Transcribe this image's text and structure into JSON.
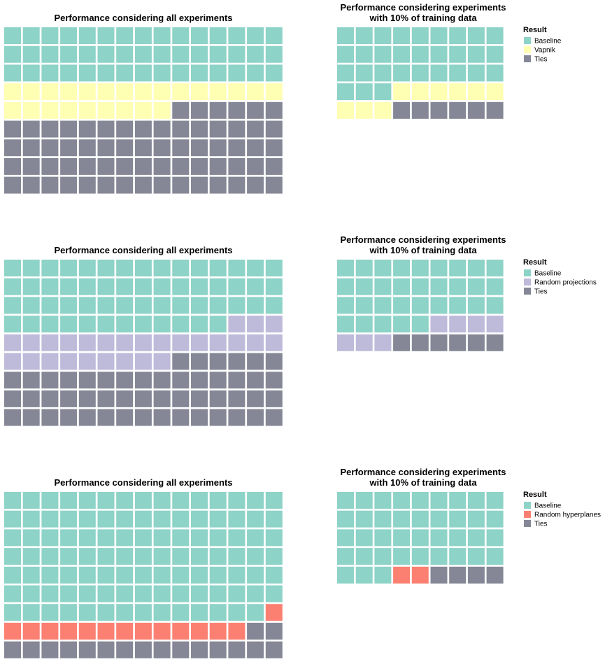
{
  "colors": {
    "Baseline": "#8dd3c7",
    "Vapnik": "#ffffb3",
    "Random projections": "#bebada",
    "Random hyperplanes": "#fb8072",
    "Ties": "#868796"
  },
  "chart_data": [
    {
      "type": "waffle",
      "title": "Performance considering all experiments",
      "columns": 15,
      "series": [
        {
          "name": "Baseline",
          "values": [
            45
          ]
        },
        {
          "name": "Vapnik",
          "values": [
            24
          ]
        },
        {
          "name": "Ties",
          "values": [
            66
          ]
        }
      ]
    },
    {
      "type": "waffle",
      "title_lines": [
        "Performance considering experiments",
        "with 10% of training data"
      ],
      "columns": 9,
      "series": [
        {
          "name": "Baseline",
          "values": [
            30
          ]
        },
        {
          "name": "Vapnik",
          "values": [
            9
          ]
        },
        {
          "name": "Ties",
          "values": [
            6
          ]
        }
      ],
      "legend": {
        "title": "Result",
        "position": "right",
        "entries": [
          "Baseline",
          "Vapnik",
          "Ties"
        ]
      }
    },
    {
      "type": "waffle",
      "title": "Performance considering all experiments",
      "columns": 15,
      "series": [
        {
          "name": "Baseline",
          "values": [
            57
          ]
        },
        {
          "name": "Random projections",
          "values": [
            27
          ]
        },
        {
          "name": "Ties",
          "values": [
            51
          ]
        }
      ]
    },
    {
      "type": "waffle",
      "title_lines": [
        "Performance considering experiments",
        "with 10% of training data"
      ],
      "columns": 9,
      "series": [
        {
          "name": "Baseline",
          "values": [
            32
          ]
        },
        {
          "name": "Random projections",
          "values": [
            7
          ]
        },
        {
          "name": "Ties",
          "values": [
            6
          ]
        }
      ],
      "legend": {
        "title": "Result",
        "position": "right",
        "entries": [
          "Baseline",
          "Random projections",
          "Ties"
        ]
      }
    },
    {
      "type": "waffle",
      "title": "Performance considering all experiments",
      "columns": 15,
      "series": [
        {
          "name": "Baseline",
          "values": [
            104
          ]
        },
        {
          "name": "Random hyperplanes",
          "values": [
            14
          ]
        },
        {
          "name": "Ties",
          "values": [
            17
          ]
        }
      ]
    },
    {
      "type": "waffle",
      "title_lines": [
        "Performance considering experiments",
        "with 10% of training data"
      ],
      "columns": 9,
      "series": [
        {
          "name": "Baseline",
          "values": [
            39
          ]
        },
        {
          "name": "Random hyperplanes",
          "values": [
            2
          ]
        },
        {
          "name": "Ties",
          "values": [
            4
          ]
        }
      ],
      "legend": {
        "title": "Result",
        "position": "right",
        "entries": [
          "Baseline",
          "Random hyperplanes",
          "Ties"
        ]
      }
    }
  ]
}
